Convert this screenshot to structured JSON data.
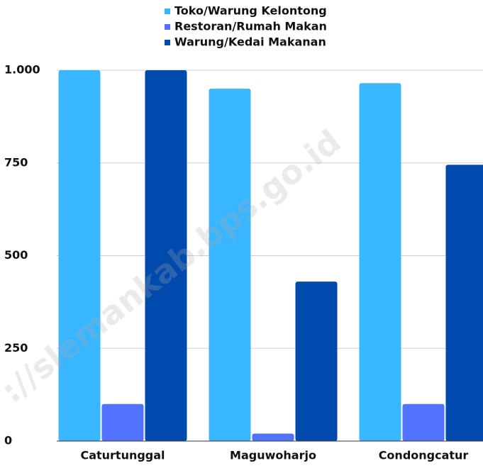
{
  "chart_data": {
    "type": "bar",
    "categories": [
      "Caturtunggal",
      "Maguwoharjo",
      "Condongcatur"
    ],
    "series": [
      {
        "name": "Toko/Warung Kelontong",
        "color": "#38b6ff",
        "values": [
          1000,
          950,
          965
        ]
      },
      {
        "name": "Restoran/Rumah Makan",
        "color": "#5271ff",
        "values": [
          100,
          20,
          100
        ]
      },
      {
        "name": "Warung/Kedai Makanan",
        "color": "#004aad",
        "values": [
          1000,
          430,
          745
        ]
      }
    ],
    "ylim": [
      0,
      1000
    ],
    "yticks": [
      0,
      250,
      500,
      750,
      {
        "value": 1000,
        "label": "1.000"
      }
    ],
    "grid": true,
    "legend": "top",
    "watermark": "://slemankab.bps.go.id"
  }
}
